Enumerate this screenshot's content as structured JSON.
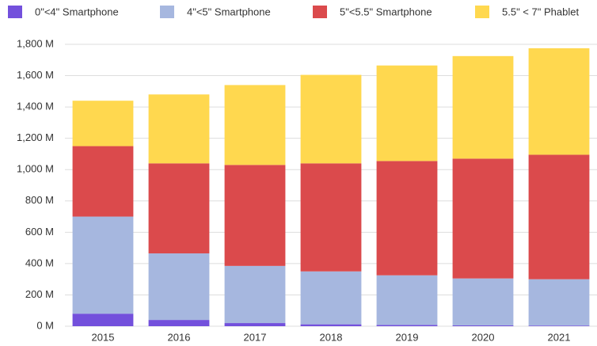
{
  "chart_data": {
    "type": "stacked_bar",
    "categories": [
      "2015",
      "2016",
      "2017",
      "2018",
      "2019",
      "2020",
      "2021"
    ],
    "series": [
      {
        "name": "0\"<4\" Smartphone",
        "color": "#7350dc",
        "values": [
          80,
          40,
          20,
          12,
          8,
          5,
          4
        ]
      },
      {
        "name": "4\"<5\" Smartphone",
        "color": "#a6b7df",
        "values": [
          620,
          425,
          365,
          338,
          317,
          300,
          296
        ]
      },
      {
        "name": "5\"<5.5\" Smartphone",
        "color": "#db4a4c",
        "values": [
          450,
          575,
          645,
          690,
          730,
          765,
          795
        ]
      },
      {
        "name": "5.5\" < 7\" Phablet",
        "color": "#ffd84f",
        "values": [
          290,
          440,
          510,
          565,
          610,
          655,
          680
        ]
      }
    ],
    "ylim": [
      0,
      1800
    ],
    "yticks": [
      {
        "value": 0,
        "label": "0 M"
      },
      {
        "value": 200,
        "label": "200 M"
      },
      {
        "value": 400,
        "label": "400 M"
      },
      {
        "value": 600,
        "label": "600 M"
      },
      {
        "value": 800,
        "label": "800 M"
      },
      {
        "value": 1000,
        "label": "1,000 M"
      },
      {
        "value": 1200,
        "label": "1,200 M"
      },
      {
        "value": 1400,
        "label": "1,400 M"
      },
      {
        "value": 1600,
        "label": "1,600 M"
      },
      {
        "value": 1800,
        "label": "1,800 M"
      }
    ],
    "grid": true,
    "legend": "top"
  }
}
